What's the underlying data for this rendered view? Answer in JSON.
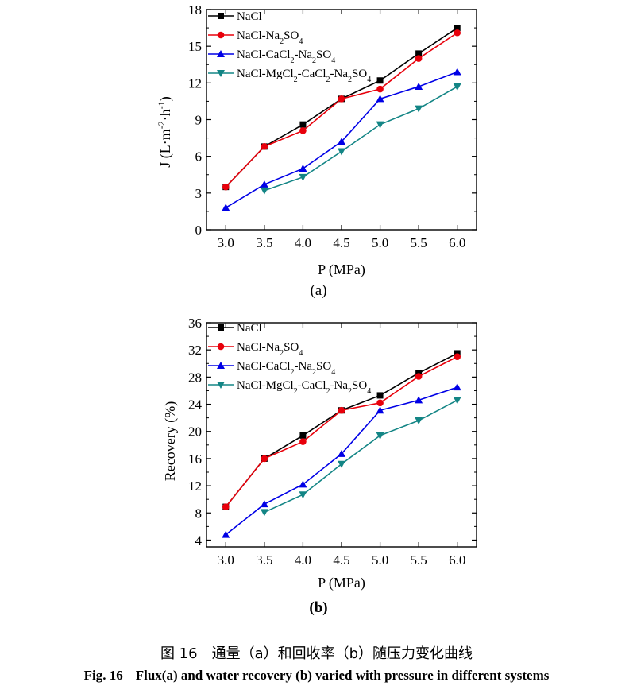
{
  "chart_data": [
    {
      "type": "line",
      "id": "a",
      "panel_label": "(a)",
      "xlabel": "P (MPa)",
      "ylabel": "J (L·m⁻²·h⁻¹)",
      "ylabel_parts": [
        "J (L·m",
        "-2",
        "·h",
        "-1",
        ")"
      ],
      "x": [
        3.0,
        3.5,
        4.0,
        4.5,
        5.0,
        5.5,
        6.0
      ],
      "x_tick_labels": [
        "3.0",
        "3.5",
        "4.0",
        "4.5",
        "5.0",
        "5.5",
        "6.0"
      ],
      "xlim": [
        2.75,
        6.25
      ],
      "ylim": [
        0,
        18
      ],
      "y_ticks": [
        0,
        3,
        6,
        9,
        12,
        15,
        18
      ],
      "series": [
        {
          "name": "NaCl",
          "name_parts": [
            {
              "t": "NaCl"
            }
          ],
          "color": "#000000",
          "marker": "square",
          "values": [
            3.5,
            6.8,
            8.6,
            10.7,
            12.2,
            14.4,
            16.5
          ]
        },
        {
          "name": "NaCl-Na2SO4",
          "name_parts": [
            {
              "t": "NaCl-Na"
            },
            {
              "t": "2",
              "sub": true
            },
            {
              "t": "SO"
            },
            {
              "t": "4",
              "sub": true
            }
          ],
          "color": "#e8000b",
          "marker": "circle",
          "values": [
            3.5,
            6.8,
            8.1,
            10.7,
            11.5,
            14.0,
            16.1
          ]
        },
        {
          "name": "NaCl-CaCl2-Na2SO4",
          "name_parts": [
            {
              "t": "NaCl-CaCl"
            },
            {
              "t": "2",
              "sub": true
            },
            {
              "t": "-Na"
            },
            {
              "t": "2",
              "sub": true
            },
            {
              "t": "SO"
            },
            {
              "t": "4",
              "sub": true
            }
          ],
          "color": "#0000e6",
          "marker": "triangle-up",
          "values": [
            1.8,
            3.7,
            5.0,
            7.2,
            10.7,
            11.7,
            12.9
          ]
        },
        {
          "name": "NaCl-MgCl2-CaCl2-Na2SO4",
          "name_parts": [
            {
              "t": "NaCl-MgCl"
            },
            {
              "t": "2",
              "sub": true
            },
            {
              "t": "-CaCl"
            },
            {
              "t": "2",
              "sub": true
            },
            {
              "t": "-Na"
            },
            {
              "t": "2",
              "sub": true
            },
            {
              "t": "SO"
            },
            {
              "t": "4",
              "sub": true
            }
          ],
          "color": "#138585",
          "marker": "triangle-down",
          "values": [
            null,
            3.2,
            4.3,
            6.4,
            8.6,
            9.9,
            11.7
          ]
        }
      ],
      "legend": "top-left"
    },
    {
      "type": "line",
      "id": "b",
      "panel_label": "(b)",
      "xlabel": "P (MPa)",
      "ylabel": "Recovery (%)",
      "x": [
        3.0,
        3.5,
        4.0,
        4.5,
        5.0,
        5.5,
        6.0
      ],
      "x_tick_labels": [
        "3.0",
        "3.5",
        "4.0",
        "4.5",
        "5.0",
        "5.5",
        "6.0"
      ],
      "xlim": [
        2.75,
        6.25
      ],
      "ylim": [
        3,
        36
      ],
      "y_ticks": [
        4,
        8,
        12,
        16,
        20,
        24,
        28,
        32,
        36
      ],
      "series": [
        {
          "name": "NaCl",
          "name_parts": [
            {
              "t": "NaCl"
            }
          ],
          "color": "#000000",
          "marker": "square",
          "values": [
            8.9,
            16.0,
            19.4,
            23.1,
            25.3,
            28.6,
            31.5
          ]
        },
        {
          "name": "NaCl-Na2SO4",
          "name_parts": [
            {
              "t": "NaCl-Na"
            },
            {
              "t": "2",
              "sub": true
            },
            {
              "t": "SO"
            },
            {
              "t": "4",
              "sub": true
            }
          ],
          "color": "#e8000b",
          "marker": "circle",
          "values": [
            8.9,
            16.0,
            18.5,
            23.1,
            24.2,
            28.1,
            31.0
          ]
        },
        {
          "name": "NaCl-CaCl2-Na2SO4",
          "name_parts": [
            {
              "t": "NaCl-CaCl"
            },
            {
              "t": "2",
              "sub": true
            },
            {
              "t": "-Na"
            },
            {
              "t": "2",
              "sub": true
            },
            {
              "t": "SO"
            },
            {
              "t": "4",
              "sub": true
            }
          ],
          "color": "#0000e6",
          "marker": "triangle-up",
          "values": [
            4.8,
            9.3,
            12.2,
            16.7,
            23.1,
            24.6,
            26.5
          ]
        },
        {
          "name": "NaCl-MgCl2-CaCl2-Na2SO4",
          "name_parts": [
            {
              "t": "NaCl-MgCl"
            },
            {
              "t": "2",
              "sub": true
            },
            {
              "t": "-CaCl"
            },
            {
              "t": "2",
              "sub": true
            },
            {
              "t": "-Na"
            },
            {
              "t": "2",
              "sub": true
            },
            {
              "t": "SO"
            },
            {
              "t": "4",
              "sub": true
            }
          ],
          "color": "#138585",
          "marker": "triangle-down",
          "values": [
            null,
            8.1,
            10.7,
            15.2,
            19.4,
            21.6,
            24.6
          ]
        }
      ],
      "legend": "top-left"
    }
  ],
  "caption": {
    "cn": "图 16　通量（a）和回收率（b）随压力变化曲线",
    "en_label": "Fig. 16",
    "en_text": "Flux(a) and water recovery (b) varied with pressure in different systems"
  }
}
